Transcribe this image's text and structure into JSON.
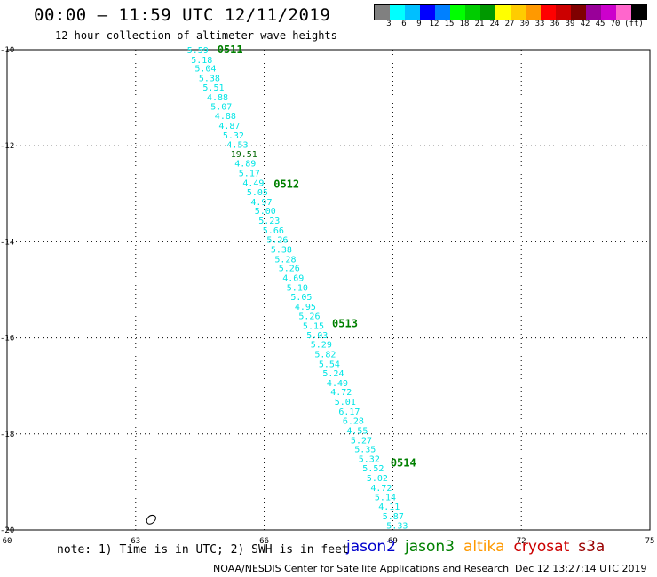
{
  "header": {
    "title": "00:00 – 11:59 UTC 12/11/2019",
    "subtitle": "12 hour collection of altimeter wave heights"
  },
  "legend": {
    "colors": [
      "#808080",
      "#00ffff",
      "#00bfff",
      "#0000ff",
      "#0080ff",
      "#00ff00",
      "#00cc00",
      "#009900",
      "#ffff00",
      "#ffcc00",
      "#ff9900",
      "#ff0000",
      "#cc0000",
      "#800000",
      "#990099",
      "#cc00cc",
      "#ff66cc",
      "#000000"
    ],
    "ticks": [
      "3",
      "6",
      "9",
      "12",
      "15",
      "18",
      "21",
      "24",
      "27",
      "30",
      "33",
      "36",
      "39",
      "42",
      "45",
      "70",
      "(ft)"
    ]
  },
  "map": {
    "lon_range": [
      60,
      75
    ],
    "lat_range": [
      -20,
      -10
    ],
    "x_ticks": [
      60,
      63,
      66,
      69,
      72,
      75
    ],
    "y_ticks": [
      -10,
      -12,
      -14,
      -16,
      -18,
      -20
    ],
    "grid": "dotted",
    "track_color": "#00e5e5",
    "time_label_color": "#008000",
    "track": [
      [
        "5.59",
        -10.0
      ],
      [
        "5.18",
        -10.2
      ],
      [
        "5.04",
        -10.38
      ],
      [
        "5.38",
        -10.58
      ],
      [
        "5.51",
        -10.78
      ],
      [
        "4.88",
        -10.98
      ],
      [
        "5.07",
        -11.17
      ],
      [
        "4.88",
        -11.37
      ],
      [
        "4.87",
        -11.57
      ],
      [
        "5.32",
        -11.77
      ],
      [
        "4.53",
        -11.97
      ],
      [
        "19.51",
        -12.16
      ],
      [
        "4.89",
        -12.36
      ],
      [
        "5.17",
        -12.56
      ],
      [
        "4.49",
        -12.76
      ],
      [
        "5.05",
        -12.96
      ],
      [
        "4.97",
        -13.16
      ],
      [
        "5.00",
        -13.35
      ],
      [
        "5.23",
        -13.55
      ],
      [
        "5.66",
        -13.75
      ],
      [
        "5.26",
        -13.95
      ],
      [
        "5.38",
        -14.15
      ],
      [
        "5.28",
        -14.35
      ],
      [
        "5.26",
        -14.54
      ],
      [
        "4.69",
        -14.74
      ],
      [
        "5.10",
        -14.94
      ],
      [
        "5.05",
        -15.14
      ],
      [
        "4.95",
        -15.34
      ],
      [
        "5.26",
        -15.54
      ],
      [
        "5.15",
        -15.74
      ],
      [
        "5.03",
        -15.93
      ],
      [
        "5.29",
        -16.13
      ],
      [
        "5.82",
        -16.33
      ],
      [
        "5.54",
        -16.53
      ],
      [
        "5.24",
        -16.73
      ],
      [
        "4.49",
        -16.93
      ],
      [
        "4.72",
        -17.12
      ],
      [
        "5.01",
        -17.32
      ],
      [
        "6.17",
        -17.52
      ],
      [
        "6.28",
        -17.72
      ],
      [
        "4.55",
        -17.92
      ],
      [
        "5.27",
        -18.12
      ],
      [
        "5.35",
        -18.31
      ],
      [
        "5.32",
        -18.51
      ],
      [
        "5.52",
        -18.71
      ],
      [
        "5.02",
        -18.91
      ],
      [
        "4.72",
        -19.11
      ],
      [
        "5.14",
        -19.31
      ],
      [
        "4.11",
        -19.5
      ],
      [
        "5.87",
        -19.7
      ],
      [
        "5.33",
        -19.9
      ]
    ],
    "time_labels": [
      {
        "text": "0511",
        "lat": -10.0
      },
      {
        "text": "0512",
        "lat": -12.8
      },
      {
        "text": "0513",
        "lat": -15.7
      },
      {
        "text": "0514",
        "lat": -18.6
      }
    ]
  },
  "footer": {
    "note": "note: 1) Time is in UTC; 2) SWH is in feet",
    "satellites": [
      {
        "name": "jason2",
        "color": "#0000cc"
      },
      {
        "name": "jason3",
        "color": "#008000"
      },
      {
        "name": "altika",
        "color": "#ff9900"
      },
      {
        "name": "cryosat",
        "color": "#cc0000"
      },
      {
        "name": "s3a",
        "color": "#990000"
      }
    ],
    "credit": "NOAA/NESDIS Center for Satellite Applications and Research",
    "timestamp": "Dec 12 13:27:14 UTC 2019"
  }
}
